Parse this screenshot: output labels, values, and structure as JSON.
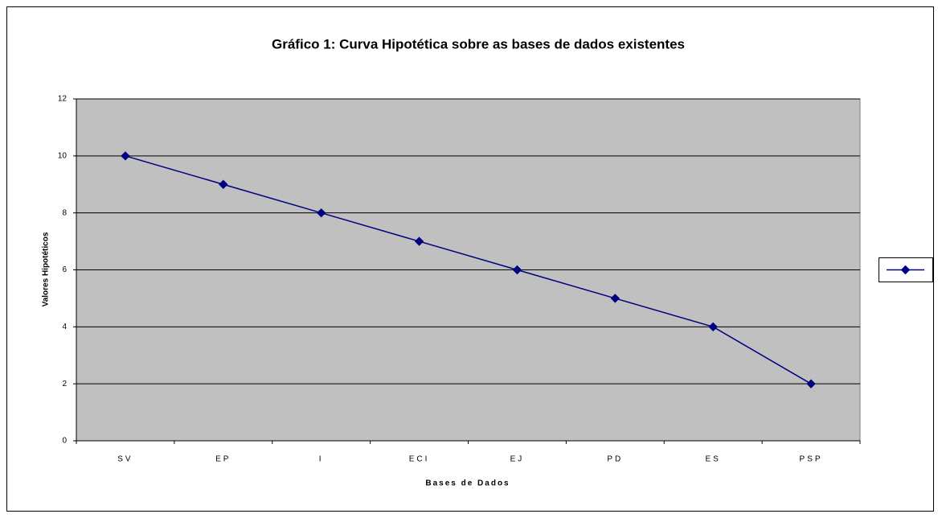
{
  "chart_data": {
    "type": "line",
    "title": "Gráfico 1: Curva Hipotética sobre as bases de dados existentes",
    "x_label": "Bases de Dados",
    "y_label": "Valores Hipotéticos",
    "categories": [
      "SV",
      "EP",
      "I",
      "ECI",
      "EJ",
      "PD",
      "ES",
      "PSP"
    ],
    "series": [
      {
        "color": "#000080",
        "values": [
          10,
          9,
          8,
          7,
          6,
          5,
          4,
          2
        ]
      }
    ],
    "ylim": [
      0,
      12
    ],
    "yticks": [
      0,
      2,
      4,
      6,
      8,
      10,
      12
    ],
    "grid": true,
    "legend": "right"
  }
}
